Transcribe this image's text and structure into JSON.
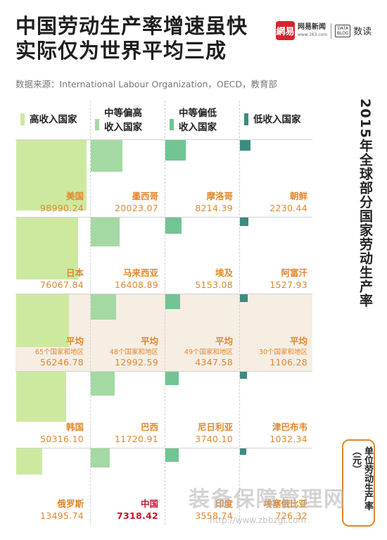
{
  "header": {
    "title_line1": "中国劳动生产率增速虽快",
    "title_line2": "实际仅为世界平均三成",
    "source": "数据来源：International Labour Organization，OECD，教育部"
  },
  "logo": {
    "icon_text": "網易",
    "name": "网易新闻",
    "url": "www.163.com",
    "data_icon_text": "DATA BLOG",
    "data_text": "数读"
  },
  "side_title": "2015年全球部分国家劳动生产率",
  "unit_label": "单位劳动生产率（元）",
  "watermark": {
    "text": "装备保障管理网",
    "url": "http://www.zbbzgl.com"
  },
  "colors": {
    "high_income": "#cde9a0",
    "upper_middle": "#a4d9a3",
    "lower_middle": "#72c493",
    "low_income": "#3d8b7f",
    "label": "#e2872a",
    "highlight": "#c4162a",
    "avg_band": "#f6ede3"
  },
  "chart_data": {
    "type": "table",
    "title": "2015年全球部分国家劳动生产率",
    "unit": "单位劳动生产率（元）",
    "columns": [
      {
        "name": "高收入国家",
        "color": "#cde9a0",
        "entries": [
          {
            "name": "美国",
            "value": 98990.24,
            "value_text": "98990.24"
          },
          {
            "name": "日本",
            "value": 76067.84,
            "value_text": "76067.84"
          },
          {
            "name": "平均",
            "sub": "65个国家和地区",
            "value": 56246.78,
            "value_text": "56246.78",
            "is_average": true
          },
          {
            "name": "韩国",
            "value": 50316.1,
            "value_text": "50316.10"
          },
          {
            "name": "俄罗斯",
            "value": 13495.74,
            "value_text": "13495.74"
          }
        ]
      },
      {
        "name": "中等偏高收入国家",
        "name_line1": "中等偏高",
        "name_line2": "收入国家",
        "color": "#a4d9a3",
        "entries": [
          {
            "name": "墨西哥",
            "value": 20023.07,
            "value_text": "20023.07"
          },
          {
            "name": "马来西亚",
            "value": 16408.89,
            "value_text": "16408.89"
          },
          {
            "name": "平均",
            "sub": "48个国家和地区",
            "value": 12992.59,
            "value_text": "12992.59",
            "is_average": true
          },
          {
            "name": "巴西",
            "value": 11720.91,
            "value_text": "11720.91"
          },
          {
            "name": "中国",
            "value": 7318.42,
            "value_text": "7318.42",
            "highlight": true
          }
        ]
      },
      {
        "name": "中等偏低收入国家",
        "name_line1": "中等偏低",
        "name_line2": "收入国家",
        "color": "#72c493",
        "entries": [
          {
            "name": "摩洛哥",
            "value": 8214.39,
            "value_text": "8214.39"
          },
          {
            "name": "埃及",
            "value": 5153.08,
            "value_text": "5153.08"
          },
          {
            "name": "平均",
            "sub": "49个国家和地区",
            "value": 4347.58,
            "value_text": "4347.58",
            "is_average": true
          },
          {
            "name": "尼日利亚",
            "value": 3740.1,
            "value_text": "3740.10"
          },
          {
            "name": "印度",
            "value": 3558.74,
            "value_text": "3558.74"
          }
        ]
      },
      {
        "name": "低收入国家",
        "color": "#3d8b7f",
        "entries": [
          {
            "name": "朝鲜",
            "value": 2230.44,
            "value_text": "2230.44"
          },
          {
            "name": "阿富汗",
            "value": 1527.93,
            "value_text": "1527.93"
          },
          {
            "name": "平均",
            "sub": "30个国家和地区",
            "value": 1106.28,
            "value_text": "1106.28",
            "is_average": true
          },
          {
            "name": "津巴布韦",
            "value": 1032.34,
            "value_text": "1032.34"
          },
          {
            "name": "埃塞俄比亚",
            "value": 726.32,
            "value_text": "726.32"
          }
        ]
      }
    ]
  }
}
